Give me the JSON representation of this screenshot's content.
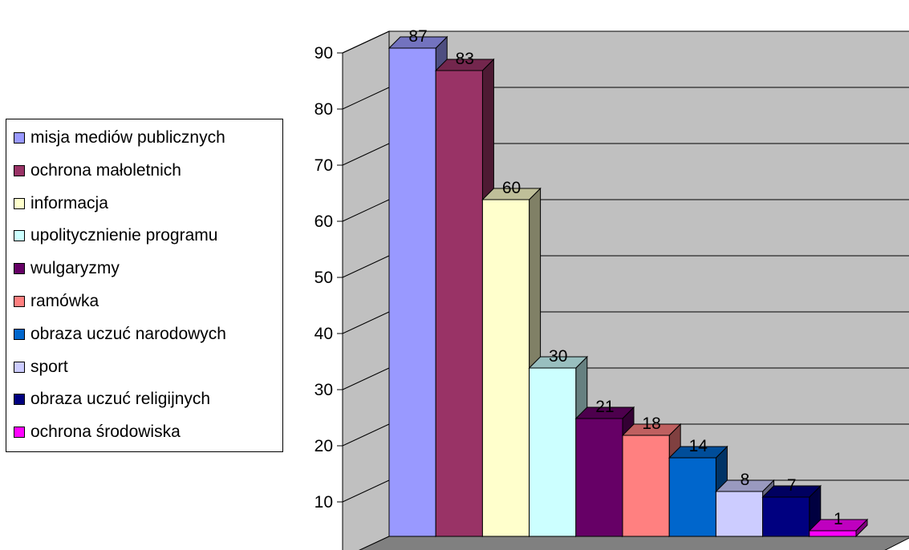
{
  "chart_data": {
    "type": "bar",
    "title": "",
    "xlabel": "",
    "ylabel": "",
    "ylim": [
      0,
      90
    ],
    "yticks": [
      0,
      10,
      20,
      30,
      40,
      50,
      60,
      70,
      80,
      90
    ],
    "grid": true,
    "legend_position": "left",
    "series": [
      {
        "name": "misja mediów publicznych",
        "value": 87,
        "color": "#9999ff"
      },
      {
        "name": "ochrona małoletnich",
        "value": 83,
        "color": "#993366"
      },
      {
        "name": "informacja",
        "value": 60,
        "color": "#ffffcc"
      },
      {
        "name": "upolitycznienie programu",
        "value": 30,
        "color": "#ccffff"
      },
      {
        "name": "wulgaryzmy",
        "value": 21,
        "color": "#660066"
      },
      {
        "name": "ramówka",
        "value": 18,
        "color": "#ff8080"
      },
      {
        "name": "obraza uczuć narodowych",
        "value": 14,
        "color": "#0066cc"
      },
      {
        "name": "sport",
        "value": 8,
        "color": "#ccccff"
      },
      {
        "name": "obraza uczuć religijnych",
        "value": 7,
        "color": "#000080"
      },
      {
        "name": "ochrona środowiska",
        "value": 1,
        "color": "#ff00ff"
      }
    ]
  }
}
